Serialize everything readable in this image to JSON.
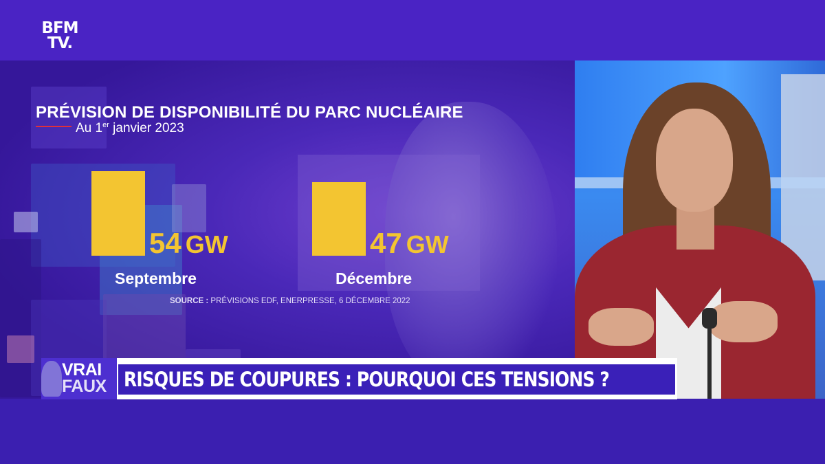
{
  "channel": {
    "logo_line1": "BFM",
    "logo_line2": "TV."
  },
  "chart_data": {
    "type": "bar",
    "title": "PRÉVISION DE DISPONIBILITÉ DU PARC NUCLÉAIRE",
    "subtitle_prefix": "Au 1",
    "subtitle_sup": "er",
    "subtitle_suffix": " janvier 2023",
    "categories": [
      "Septembre",
      "Décembre"
    ],
    "values": [
      54,
      47
    ],
    "value_labels": [
      "54",
      "47"
    ],
    "unit": "GW",
    "source_label": "SOURCE :",
    "source_text": " PRÉVISIONS EDF, ENERPRESSE, 6 DÉCEMBRE 2022",
    "bar_color": "#f3c531"
  },
  "lower_third": {
    "segment_line1": "VRAI",
    "segment_line2": "FAUX",
    "headline": "RISQUES DE COUPURES : POURQUOI CES TENSIONS ?",
    "accent_color": "#3a20b8"
  }
}
